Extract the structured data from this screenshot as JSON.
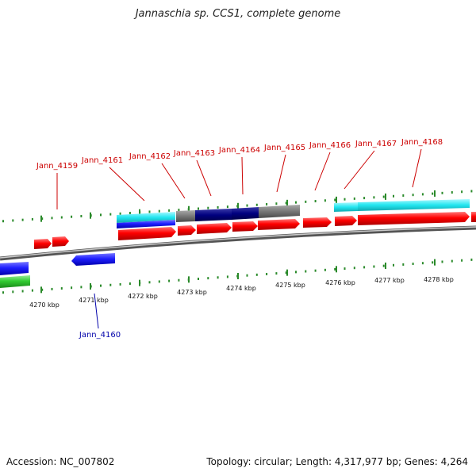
{
  "title": "Jannaschia sp. CCS1, complete genome",
  "footer": {
    "accession": "Accession: NC_007802",
    "summary": "Topology: circular; Length: 4,317,977 bp; Genes: 4,264"
  },
  "scale_labels": [
    "4270 kbp",
    "4271 kbp",
    "4272 kbp",
    "4273 kbp",
    "4274 kbp",
    "4275 kbp",
    "4276 kbp",
    "4277 kbp",
    "4278 kbp"
  ],
  "gene_labels_forward": [
    "Jann_4159",
    "Jann_4161",
    "Jann_4162",
    "Jann_4163",
    "Jann_4164",
    "Jann_4165",
    "Jann_4166",
    "Jann_4167",
    "Jann_4168"
  ],
  "gene_labels_reverse": [
    "Jann_4160"
  ],
  "colors": {
    "forward_cds": "#ff0000",
    "reverse_cds": "#1f1fff",
    "rna_green": "#33cc33",
    "feature_cyan": "#22e6f0",
    "feature_navy": "#000080",
    "feature_gray": "#777777",
    "backbone": "#888888",
    "ticks": "#2a8a2a",
    "label_forward": "#cc0000",
    "label_reverse": "#0000aa"
  }
}
